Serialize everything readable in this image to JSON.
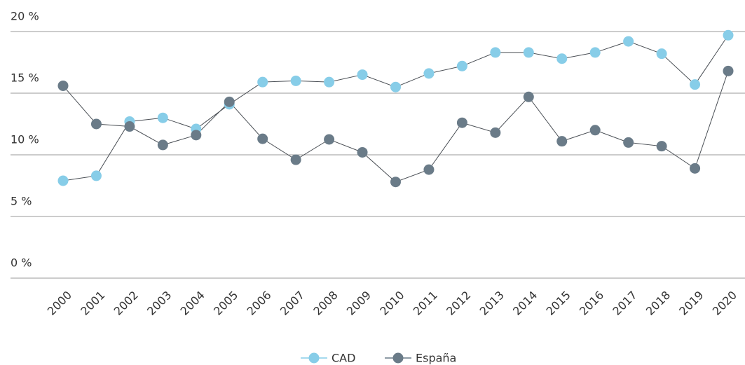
{
  "chart_data": {
    "type": "line",
    "categories": [
      "2000",
      "2001",
      "2002",
      "2003",
      "2004",
      "2005",
      "2006",
      "2007",
      "2008",
      "2009",
      "2010",
      "2011",
      "2012",
      "2013",
      "2014",
      "2015",
      "2016",
      "2017",
      "2018",
      "2019",
      "2020"
    ],
    "series": [
      {
        "name": "CAD",
        "color": "#87cde8",
        "values": [
          7.9,
          8.3,
          12.7,
          13.0,
          12.1,
          14.1,
          15.9,
          16.0,
          15.9,
          16.5,
          15.5,
          16.6,
          17.2,
          18.3,
          18.3,
          17.8,
          18.3,
          19.2,
          18.2,
          15.7,
          19.7
        ]
      },
      {
        "name": "España",
        "color": "#6a7b88",
        "values": [
          15.6,
          12.5,
          12.3,
          10.8,
          11.6,
          14.3,
          11.3,
          9.6,
          11.25,
          10.2,
          7.8,
          8.8,
          12.6,
          11.8,
          14.7,
          11.1,
          12.0,
          11.0,
          10.7,
          8.9,
          16.8
        ]
      }
    ],
    "ylim": [
      0,
      20
    ],
    "yticks": [
      {
        "value": 0,
        "label": "0 %"
      },
      {
        "value": 5,
        "label": "5 %"
      },
      {
        "value": 10,
        "label": "10 %"
      },
      {
        "value": 15,
        "label": "15 %"
      },
      {
        "value": 20,
        "label": "20 %"
      }
    ],
    "grid": true,
    "legend": "bottom"
  }
}
